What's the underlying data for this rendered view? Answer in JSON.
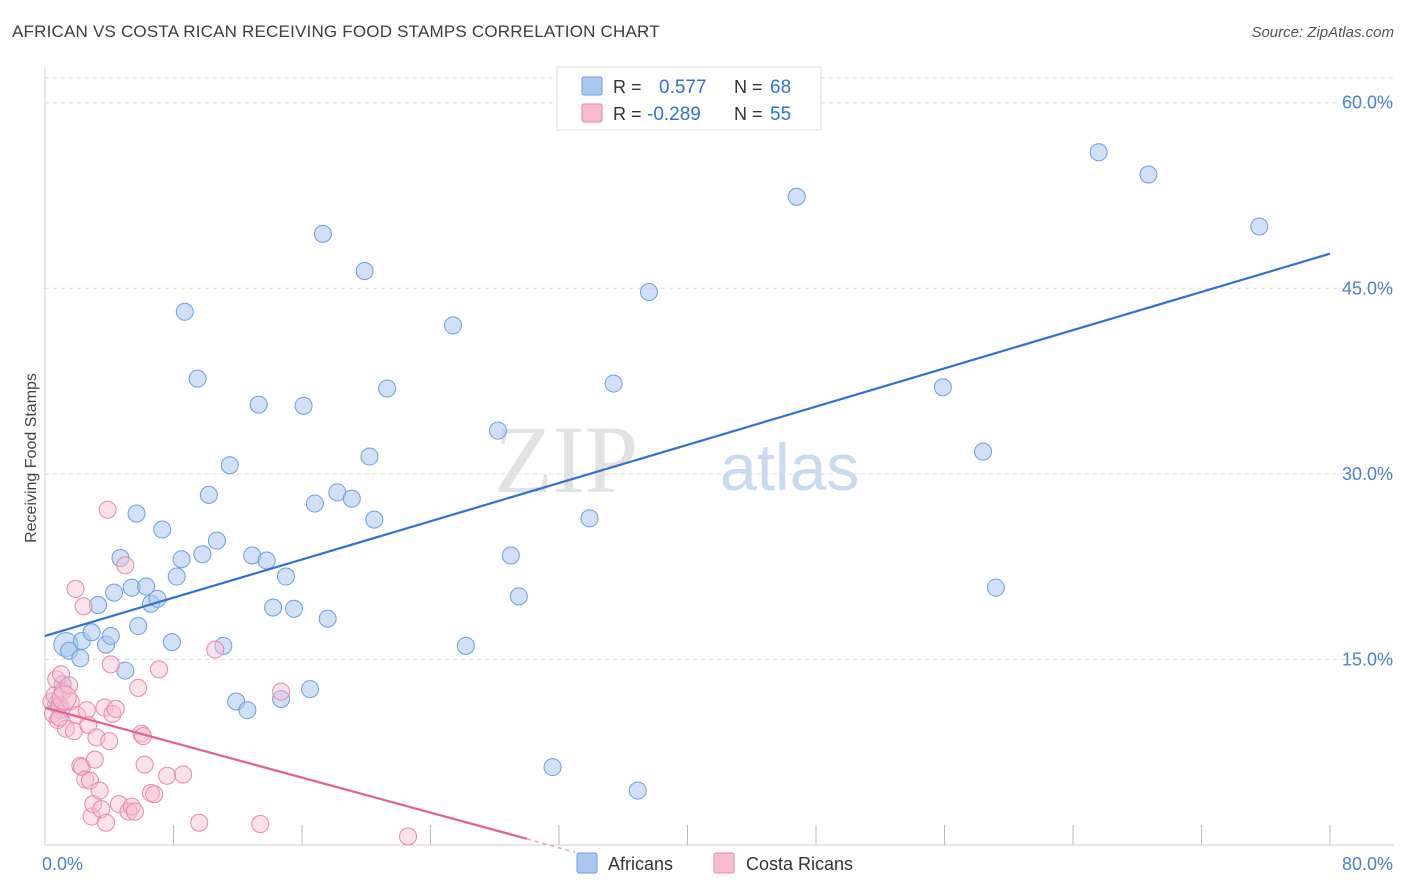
{
  "title": "AFRICAN VS COSTA RICAN RECEIVING FOOD STAMPS CORRELATION CHART",
  "source": "Source: ZipAtlas.com",
  "watermark": {
    "zip": "ZIP",
    "atlas": "atlas"
  },
  "colors": {
    "africans_fill": "#aac8f0",
    "africans_stroke": "#6a9ee0",
    "africans_line": "#2f72d4",
    "costa_fill": "#f6bcd0",
    "costa_stroke": "#e888a8",
    "costa_line": "#e0628e",
    "axis_label": "#4a7fd4",
    "grid": "#dddddd"
  },
  "legend": {
    "rows": [
      {
        "r_label": "R =",
        "r_value": "0.577",
        "n_label": "N =",
        "n_value": "68",
        "series": "africans"
      },
      {
        "r_label": "R =",
        "r_value": "-0.289",
        "n_label": "N =",
        "n_value": "55",
        "series": "costa"
      }
    ]
  },
  "bottom_legend": [
    "Africans",
    "Costa Ricans"
  ],
  "chart_data": {
    "type": "scatter",
    "title": "AFRICAN VS COSTA RICAN RECEIVING FOOD STAMPS CORRELATION CHART",
    "xlabel": "",
    "ylabel": "Receiving Food Stamps",
    "xlim": [
      0,
      80
    ],
    "ylim": [
      0,
      62
    ],
    "x_tick_labels": [
      {
        "value": 0,
        "label": "0.0%"
      },
      {
        "value": 80,
        "label": "80.0%"
      }
    ],
    "y_tick_labels": [
      {
        "value": 15,
        "label": "15.0%"
      },
      {
        "value": 30,
        "label": "30.0%"
      },
      {
        "value": 45,
        "label": "45.0%"
      },
      {
        "value": 60,
        "label": "60.0%"
      }
    ],
    "x_minor_ticks": [
      8,
      16,
      24,
      32,
      40,
      48,
      56,
      64,
      72,
      80
    ],
    "grid": true,
    "legend_position": "top-center",
    "series": [
      {
        "name": "Africans",
        "color": "#aac8f0",
        "trend": {
          "x": [
            0,
            80
          ],
          "y": [
            16.9,
            47.8
          ]
        },
        "points": [
          [
            1.3,
            16.2
          ],
          [
            1.5,
            15.7
          ],
          [
            2.2,
            15.1
          ],
          [
            2.3,
            16.5
          ],
          [
            2.9,
            17.2
          ],
          [
            3.3,
            19.4
          ],
          [
            3.8,
            16.2
          ],
          [
            4.1,
            16.9
          ],
          [
            4.3,
            20.4
          ],
          [
            4.7,
            23.2
          ],
          [
            5.0,
            14.1
          ],
          [
            5.4,
            20.8
          ],
          [
            5.7,
            26.8
          ],
          [
            5.8,
            17.7
          ],
          [
            6.3,
            20.9
          ],
          [
            6.6,
            19.5
          ],
          [
            7.0,
            19.9
          ],
          [
            7.3,
            25.5
          ],
          [
            7.9,
            16.4
          ],
          [
            8.2,
            21.7
          ],
          [
            8.5,
            23.1
          ],
          [
            8.7,
            43.1
          ],
          [
            9.5,
            37.7
          ],
          [
            9.8,
            23.5
          ],
          [
            10.2,
            28.3
          ],
          [
            10.7,
            24.6
          ],
          [
            11.1,
            16.1
          ],
          [
            11.5,
            30.7
          ],
          [
            11.9,
            11.6
          ],
          [
            12.6,
            10.9
          ],
          [
            12.9,
            23.4
          ],
          [
            13.3,
            35.6
          ],
          [
            13.8,
            23.0
          ],
          [
            14.2,
            19.2
          ],
          [
            14.7,
            11.8
          ],
          [
            15.0,
            21.7
          ],
          [
            15.5,
            19.1
          ],
          [
            16.1,
            35.5
          ],
          [
            16.5,
            12.6
          ],
          [
            16.8,
            27.6
          ],
          [
            17.3,
            49.4
          ],
          [
            17.6,
            18.3
          ],
          [
            18.2,
            28.5
          ],
          [
            19.1,
            28.0
          ],
          [
            19.9,
            46.4
          ],
          [
            20.2,
            31.4
          ],
          [
            20.5,
            26.3
          ],
          [
            21.3,
            36.9
          ],
          [
            25.4,
            42.0
          ],
          [
            26.2,
            16.1
          ],
          [
            28.2,
            33.5
          ],
          [
            29.0,
            23.4
          ],
          [
            29.5,
            20.1
          ],
          [
            31.6,
            6.3
          ],
          [
            33.9,
            26.4
          ],
          [
            35.4,
            37.3
          ],
          [
            36.9,
            4.4
          ],
          [
            37.6,
            44.7
          ],
          [
            46.8,
            52.4
          ],
          [
            55.9,
            37.0
          ],
          [
            58.4,
            31.8
          ],
          [
            59.2,
            20.8
          ],
          [
            65.6,
            56.0
          ],
          [
            68.7,
            54.2
          ],
          [
            75.6,
            50.0
          ],
          [
            1.1,
            13.0
          ],
          [
            0.7,
            11.4
          ],
          [
            1.0,
            10.9
          ]
        ]
      },
      {
        "name": "Costa Ricans",
        "color": "#f6bcd0",
        "trend": {
          "x": [
            0,
            30
          ],
          "y": [
            11.1,
            0.5
          ]
        },
        "points": [
          [
            0.4,
            11.6
          ],
          [
            0.5,
            10.6
          ],
          [
            0.6,
            12.1
          ],
          [
            0.7,
            13.4
          ],
          [
            0.8,
            10.1
          ],
          [
            0.9,
            11.3
          ],
          [
            1.0,
            13.8
          ],
          [
            1.1,
            12.4
          ],
          [
            1.3,
            9.4
          ],
          [
            1.5,
            12.9
          ],
          [
            1.6,
            11.6
          ],
          [
            1.8,
            9.2
          ],
          [
            1.9,
            20.7
          ],
          [
            2.0,
            10.5
          ],
          [
            2.2,
            6.4
          ],
          [
            2.3,
            6.3
          ],
          [
            2.4,
            19.3
          ],
          [
            2.5,
            5.3
          ],
          [
            2.6,
            10.9
          ],
          [
            2.7,
            9.7
          ],
          [
            2.8,
            5.2
          ],
          [
            2.9,
            2.3
          ],
          [
            3.0,
            3.3
          ],
          [
            3.1,
            6.9
          ],
          [
            3.2,
            8.7
          ],
          [
            3.4,
            4.4
          ],
          [
            3.5,
            2.9
          ],
          [
            3.7,
            11.1
          ],
          [
            3.8,
            1.8
          ],
          [
            3.9,
            27.1
          ],
          [
            4.0,
            8.4
          ],
          [
            4.1,
            14.6
          ],
          [
            4.2,
            10.6
          ],
          [
            4.4,
            11.0
          ],
          [
            4.6,
            3.3
          ],
          [
            5.0,
            22.6
          ],
          [
            5.2,
            2.7
          ],
          [
            5.4,
            3.1
          ],
          [
            5.6,
            2.7
          ],
          [
            5.8,
            12.7
          ],
          [
            6.0,
            9.0
          ],
          [
            6.1,
            8.8
          ],
          [
            6.2,
            6.5
          ],
          [
            6.6,
            4.2
          ],
          [
            6.8,
            4.1
          ],
          [
            7.1,
            14.2
          ],
          [
            7.6,
            5.6
          ],
          [
            8.6,
            5.7
          ],
          [
            9.6,
            1.8
          ],
          [
            10.6,
            15.8
          ],
          [
            13.4,
            1.7
          ],
          [
            14.7,
            12.4
          ],
          [
            22.6,
            0.7
          ],
          [
            1.2,
            11.9
          ],
          [
            0.9,
            10.3
          ]
        ]
      }
    ]
  }
}
